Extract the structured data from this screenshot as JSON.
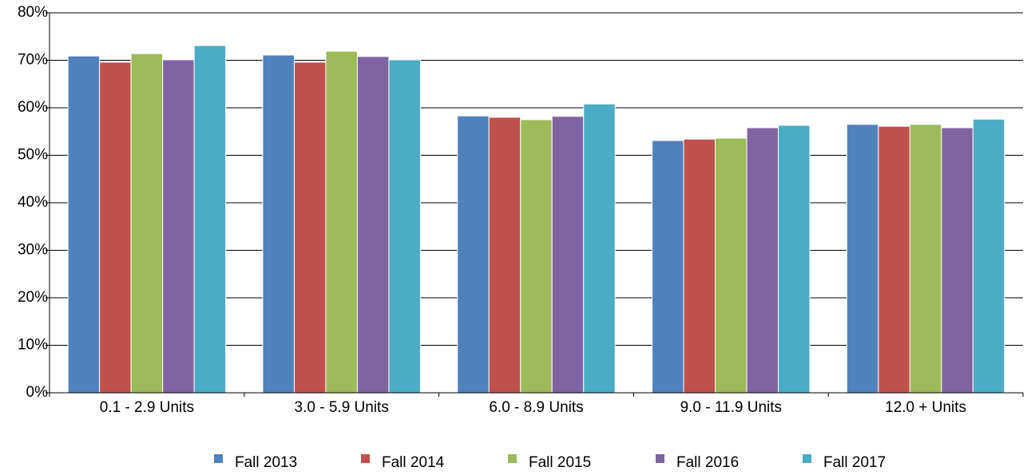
{
  "chart_data": {
    "type": "bar",
    "categories": [
      "0.1 - 2.9 Units",
      "3.0 - 5.9 Units",
      "6.0 - 8.9 Units",
      "9.0 - 11.9 Units",
      "12.0 + Units"
    ],
    "series": [
      {
        "name": "Fall 2013",
        "color": "#4f81bd",
        "values": [
          70.9,
          71.1,
          58.3,
          53.1,
          56.5
        ]
      },
      {
        "name": "Fall 2014",
        "color": "#c0504d",
        "values": [
          69.6,
          69.6,
          58.0,
          53.4,
          56.1
        ]
      },
      {
        "name": "Fall 2015",
        "color": "#9bbb59",
        "values": [
          71.4,
          71.9,
          57.5,
          53.6,
          56.5
        ]
      },
      {
        "name": "Fall 2016",
        "color": "#8064a2",
        "values": [
          70.1,
          70.8,
          58.2,
          55.8,
          55.8
        ]
      },
      {
        "name": "Fall 2017",
        "color": "#4bacc6",
        "values": [
          73.1,
          70.1,
          60.8,
          56.3,
          57.6
        ]
      }
    ],
    "ylim": [
      0,
      80
    ],
    "yticks": [
      {
        "value": 0,
        "label": "0%"
      },
      {
        "value": 10,
        "label": "10%"
      },
      {
        "value": 20,
        "label": "20%"
      },
      {
        "value": 30,
        "label": "30%"
      },
      {
        "value": 40,
        "label": "40%"
      },
      {
        "value": 50,
        "label": "50%"
      },
      {
        "value": 60,
        "label": "60%"
      },
      {
        "value": 70,
        "label": "70%"
      },
      {
        "value": 80,
        "label": "80%"
      }
    ],
    "grid": true,
    "legend": "bottom"
  }
}
